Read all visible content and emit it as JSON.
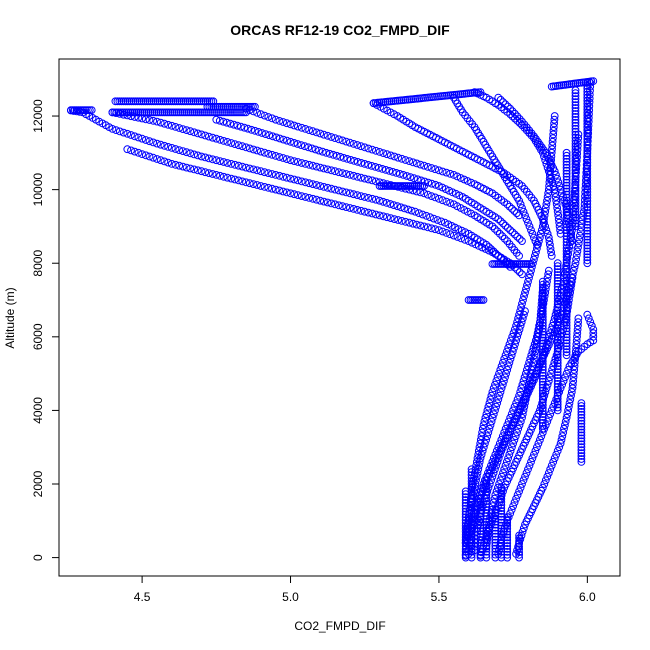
{
  "chart_data": {
    "type": "scatter",
    "title": "ORCAS RF12-19 CO2_FMPD_DIF",
    "xlabel": "CO2_FMPD_DIF",
    "ylabel": "Altitude (m)",
    "xlim": [
      4.22,
      6.11
    ],
    "ylim": [
      -500,
      13550
    ],
    "x_ticks": [
      4.5,
      5.0,
      5.5,
      6.0
    ],
    "x_tick_labels": [
      "4.5",
      "5.0",
      "5.5",
      "6.0"
    ],
    "y_ticks": [
      0,
      2000,
      4000,
      6000,
      8000,
      10000,
      12000
    ],
    "y_tick_labels": [
      "0",
      "2000",
      "4000",
      "6000",
      "8000",
      "10000",
      "12000"
    ],
    "marker": "open-circle",
    "point_color": "#0000ff",
    "grid": false,
    "legend": "none",
    "series": [
      {
        "profiles": [
          {
            "x": [
              5.59,
              5.6,
              5.61,
              5.63,
              5.65,
              5.68,
              5.72,
              5.76,
              5.79,
              5.82,
              5.85,
              5.87,
              5.88,
              5.89
            ],
            "y": [
              50,
              900,
              1800,
              2700,
              3600,
              4500,
              5400,
              6300,
              7200,
              8100,
              9000,
              10000,
              11000,
              12000
            ]
          },
          {
            "x": [
              5.6,
              5.61,
              5.63,
              5.66,
              5.7,
              5.74,
              5.78,
              5.82,
              5.86,
              5.9,
              5.93,
              5.96,
              5.99,
              6.0,
              6.01
            ],
            "y": [
              100,
              700,
              1400,
              2100,
              2800,
              3500,
              4200,
              4900,
              5600,
              6300,
              7000,
              8000,
              9500,
              11000,
              12900
            ]
          },
          {
            "x": [
              5.62,
              5.63,
              5.65,
              5.68,
              5.71,
              5.75,
              5.79,
              5.83,
              5.86,
              5.89,
              5.92,
              5.95,
              5.97
            ],
            "y": [
              200,
              800,
              1500,
              2200,
              2900,
              3600,
              4300,
              5000,
              5700,
              6500,
              7500,
              9000,
              11500
            ]
          },
          {
            "x": [
              5.64,
              5.66,
              5.69,
              5.72,
              5.76,
              5.8,
              5.84,
              5.87,
              5.9,
              5.93,
              5.95
            ],
            "y": [
              50,
              600,
              1200,
              1900,
              2600,
              3300,
              4000,
              4800,
              5600,
              6600,
              7600
            ]
          },
          {
            "x": [
              5.7,
              5.71,
              5.73,
              5.76,
              5.79,
              5.82,
              5.85,
              5.88,
              5.91,
              5.94,
              5.97,
              6.0,
              6.02,
              6.02,
              6.0
            ],
            "y": [
              100,
              500,
              1000,
              1600,
              2200,
              2800,
              3400,
              4000,
              4600,
              5200,
              5600,
              5800,
              5900,
              6200,
              6600
            ]
          },
          {
            "x": [
              5.76,
              5.77,
              5.79,
              5.82,
              5.85,
              5.88,
              5.91,
              5.93,
              5.95,
              5.96,
              5.97
            ],
            "y": [
              100,
              400,
              900,
              1400,
              1900,
              2500,
              3100,
              3800,
              4600,
              5500,
              6500
            ]
          },
          {
            "x": [
              5.6,
              5.62,
              5.65,
              5.69,
              5.73,
              5.77,
              5.8,
              5.83,
              5.85,
              5.87
            ],
            "y": [
              600,
              1300,
              2000,
              2800,
              3600,
              4400,
              5200,
              6000,
              6800,
              7800
            ]
          },
          {
            "x": [
              5.66,
              5.67,
              5.69,
              5.72,
              5.75,
              5.78,
              5.8,
              5.82,
              5.84,
              5.85
            ],
            "y": [
              300,
              1000,
              1700,
              2400,
              3100,
              3800,
              4600,
              5400,
              6300,
              7300
            ]
          },
          {
            "x": [
              5.59,
              5.6,
              5.62,
              5.64,
              5.67,
              5.7,
              5.73,
              5.76,
              5.79
            ],
            "y": [
              400,
              1100,
              1900,
              2700,
              3500,
              4300,
              5100,
              5900,
              6700
            ]
          }
        ]
      },
      {
        "profiles": [
          {
            "x": [
              4.26,
              4.3,
              4.4,
              4.55,
              4.7,
              4.85,
              5.0,
              5.15,
              5.3,
              5.42,
              5.52,
              5.6,
              5.66,
              5.7,
              5.74
            ],
            "y": [
              12150,
              12100,
              11650,
              11250,
              10900,
              10600,
              10300,
              10000,
              9700,
              9400,
              9100,
              8800,
              8500,
              8200,
              7900
            ]
          },
          {
            "x": [
              4.4,
              4.55,
              4.7,
              4.85,
              5.0,
              5.15,
              5.3,
              5.45,
              5.55,
              5.62,
              5.68,
              5.73,
              5.77
            ],
            "y": [
              12100,
              11850,
              11500,
              11150,
              10800,
              10500,
              10200,
              9900,
              9600,
              9300,
              9000,
              8600,
              8200
            ]
          },
          {
            "x": [
              4.45,
              4.6,
              4.75,
              4.9,
              5.05,
              5.2,
              5.35,
              5.5,
              5.6,
              5.68,
              5.74,
              5.78
            ],
            "y": [
              11100,
              10700,
              10400,
              10100,
              9800,
              9500,
              9200,
              8900,
              8600,
              8300,
              8000,
              7700
            ]
          },
          {
            "x": [
              4.75,
              4.88,
              5.0,
              5.12,
              5.25,
              5.38,
              5.5,
              5.58,
              5.64,
              5.7,
              5.74,
              5.78
            ],
            "y": [
              11900,
              11600,
              11300,
              11000,
              10700,
              10400,
              10100,
              9800,
              9500,
              9200,
              8900,
              8600
            ]
          },
          {
            "x": [
              4.85,
              4.95,
              5.05,
              5.15,
              5.25,
              5.35,
              5.45,
              5.55,
              5.62,
              5.68,
              5.73,
              5.77
            ],
            "y": [
              12200,
              11900,
              11650,
              11400,
              11150,
              10900,
              10650,
              10400,
              10150,
              9900,
              9600,
              9300
            ]
          },
          {
            "x": [
              5.28,
              5.36,
              5.42,
              5.48,
              5.54,
              5.6,
              5.66,
              5.72,
              5.78,
              5.82,
              5.85,
              5.87,
              5.88
            ],
            "y": [
              12350,
              12000,
              11700,
              11450,
              11200,
              10950,
              10700,
              10450,
              10100,
              9700,
              9200,
              8700,
              8200
            ]
          },
          {
            "x": [
              5.62,
              5.66,
              5.7,
              5.74,
              5.78,
              5.82,
              5.85,
              5.87,
              5.89,
              5.9,
              5.91
            ],
            "y": [
              12650,
              12500,
              12300,
              12050,
              11750,
              11400,
              11000,
              10500,
              10000,
              9400,
              8800
            ]
          },
          {
            "x": [
              5.55,
              5.58,
              5.62,
              5.65,
              5.68,
              5.71,
              5.74,
              5.77,
              5.79,
              5.81,
              5.83
            ],
            "y": [
              12500,
              12100,
              11700,
              11300,
              10900,
              10500,
              10100,
              9700,
              9300,
              8900,
              8500
            ]
          },
          {
            "x": [
              5.7,
              5.74,
              5.78,
              5.82,
              5.86,
              5.89,
              5.91,
              5.93,
              5.94,
              5.95
            ],
            "y": [
              12500,
              12200,
              11850,
              11450,
              11000,
              10500,
              10000,
              9500,
              9000,
              8500
            ]
          }
        ]
      },
      {
        "segments": [
          {
            "x": [
              4.26,
              4.33
            ],
            "y": [
              12160,
              12160
            ]
          },
          {
            "x": [
              4.41,
              4.74
            ],
            "y": [
              12400,
              12400
            ]
          },
          {
            "x": [
              4.4,
              4.85
            ],
            "y": [
              12100,
              12100
            ]
          },
          {
            "x": [
              4.72,
              4.88
            ],
            "y": [
              12250,
              12250
            ]
          },
          {
            "x": [
              5.28,
              5.64
            ],
            "y": [
              12350,
              12650
            ]
          },
          {
            "x": [
              5.88,
              6.02
            ],
            "y": [
              12800,
              12950
            ]
          },
          {
            "x": [
              5.3,
              5.45
            ],
            "y": [
              10100,
              10100
            ]
          },
          {
            "x": [
              5.68,
              5.81
            ],
            "y": [
              7980,
              7980
            ]
          },
          {
            "x": [
              5.6,
              5.65
            ],
            "y": [
              7000,
              7000
            ]
          }
        ]
      },
      {
        "columns": [
          {
            "x": 5.59,
            "y": [
              0,
              1800
            ]
          },
          {
            "x": 5.61,
            "y": [
              0,
              2400
            ]
          },
          {
            "x": 5.64,
            "y": [
              0,
              1600
            ]
          },
          {
            "x": 5.66,
            "y": [
              0,
              2100
            ]
          },
          {
            "x": 5.69,
            "y": [
              0,
              1300
            ]
          },
          {
            "x": 5.71,
            "y": [
              0,
              1900
            ]
          },
          {
            "x": 5.73,
            "y": [
              0,
              1100
            ]
          },
          {
            "x": 5.77,
            "y": [
              0,
              600
            ]
          },
          {
            "x": 5.85,
            "y": [
              3500,
              7500
            ]
          },
          {
            "x": 5.9,
            "y": [
              4000,
              8000
            ]
          },
          {
            "x": 5.93,
            "y": [
              5500,
              11000
            ]
          },
          {
            "x": 5.96,
            "y": [
              9000,
              12700
            ]
          },
          {
            "x": 6.0,
            "y": [
              8000,
              12900
            ]
          },
          {
            "x": 5.98,
            "y": [
              2600,
              4200
            ]
          }
        ]
      }
    ]
  }
}
